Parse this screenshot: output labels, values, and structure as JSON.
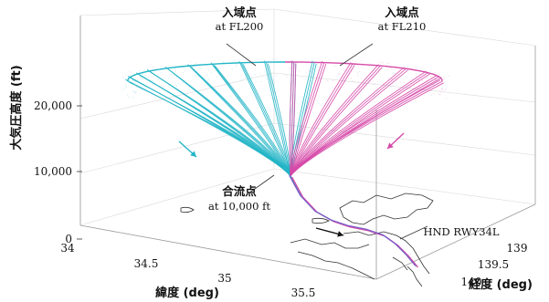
{
  "chart_data": {
    "type": "line3d",
    "zlabel": "大気圧高度 (ft)",
    "xlabel": "緯度 (deg)",
    "ylabel": "経度 (deg)",
    "z_ticks": [
      "0",
      "10,000",
      "20,000"
    ],
    "lat_ticks": [
      "34",
      "34.5",
      "35",
      "35.5"
    ],
    "lon_ticks": [
      "139",
      "139.5",
      "140"
    ],
    "series": [
      {
        "color": "#22b5c7"
      },
      {
        "color": "#d64aa8"
      }
    ],
    "annotations": {
      "entry_left_title": "入域点",
      "entry_left_sub": "at FL200",
      "entry_right_title": "入域点",
      "entry_right_sub": "at FL210",
      "merge_title": "合流点",
      "merge_sub": "at 10,000 ft",
      "runway": "HND RWY34L"
    }
  }
}
